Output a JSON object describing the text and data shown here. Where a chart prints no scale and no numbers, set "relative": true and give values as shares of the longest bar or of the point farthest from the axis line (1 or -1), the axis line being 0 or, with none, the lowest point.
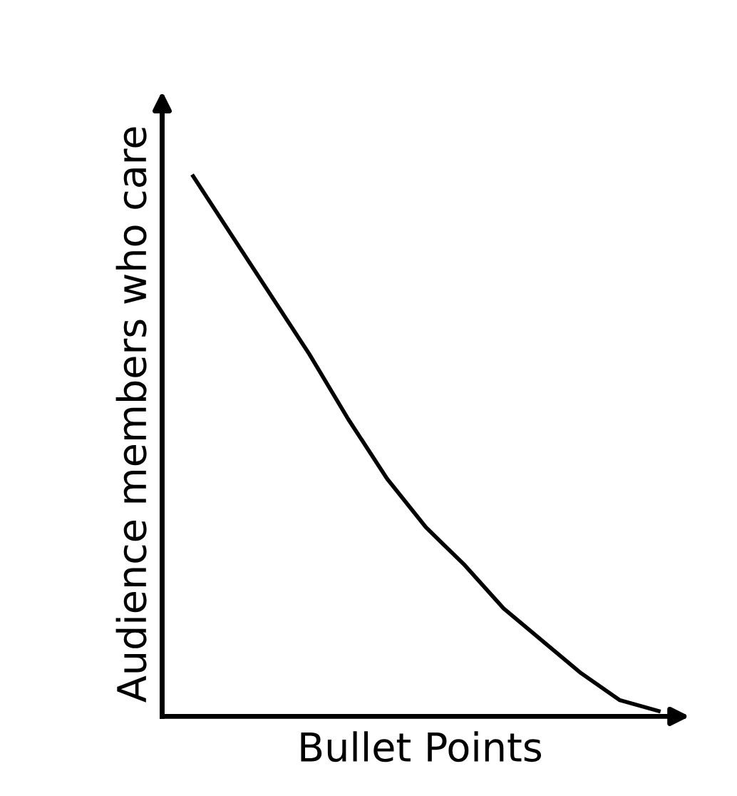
{
  "chart_data": {
    "type": "line",
    "relative": true,
    "xlabel": "Bullet Points",
    "ylabel": "Audience members who care",
    "categories": [
      null,
      null,
      null,
      null,
      null,
      null,
      null,
      null,
      null,
      null,
      null,
      null,
      null
    ],
    "series": [
      {
        "color": "#000000",
        "values": [
          1,
          0.89,
          0.78,
          0.67,
          0.55,
          0.44,
          0.35,
          0.28,
          0.2,
          0.14,
          0.08,
          0.03,
          0.01
        ]
      }
    ],
    "grid": false,
    "marker": "none",
    "line_style": "solid"
  }
}
